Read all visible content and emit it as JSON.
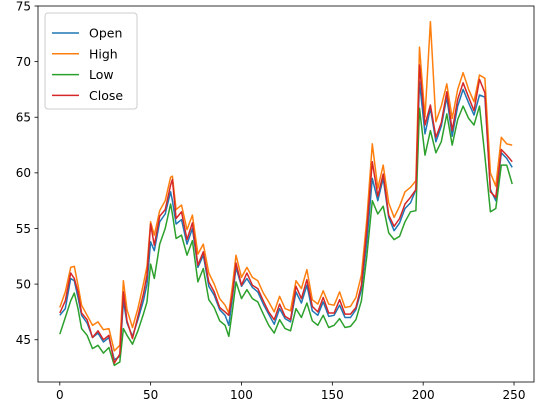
{
  "chart_data": {
    "type": "line",
    "title": "",
    "xlabel": "",
    "ylabel": "",
    "xlim": [
      -12,
      261
    ],
    "ylim": [
      41.2,
      75
    ],
    "grid": false,
    "legend_position": "top-left",
    "x_ticks": [
      0,
      50,
      100,
      150,
      200,
      250
    ],
    "y_ticks": [
      45,
      50,
      55,
      60,
      65,
      70,
      75
    ],
    "x": [
      0,
      3,
      6,
      8,
      10,
      12,
      15,
      18,
      21,
      24,
      27,
      30,
      33,
      35,
      37,
      40,
      43,
      46,
      48,
      50,
      52,
      55,
      58,
      61,
      62,
      64,
      67,
      70,
      73,
      76,
      79,
      82,
      85,
      88,
      91,
      93,
      95,
      97,
      100,
      103,
      106,
      109,
      112,
      115,
      118,
      121,
      124,
      127,
      130,
      133,
      136,
      139,
      142,
      145,
      148,
      151,
      154,
      157,
      160,
      163,
      166,
      169,
      172,
      175,
      178,
      181,
      184,
      187,
      190,
      193,
      196,
      198,
      201,
      204,
      207,
      210,
      213,
      216,
      219,
      222,
      225,
      228,
      231,
      234,
      237,
      240,
      243,
      246,
      249
    ],
    "series": [
      {
        "name": "Open",
        "color": "#1f77b4",
        "values": [
          47.2,
          47.8,
          50.5,
          50.3,
          48.8,
          47.2,
          46.5,
          45.2,
          45.6,
          44.8,
          45.2,
          43.2,
          43.5,
          48.5,
          46.5,
          45.3,
          46.8,
          48.5,
          50.0,
          53.8,
          53.0,
          55.6,
          56.3,
          58.3,
          57.5,
          55.4,
          55.8,
          53.6,
          55.0,
          51.5,
          52.6,
          49.8,
          49.0,
          47.7,
          47.2,
          46.3,
          48.8,
          51.5,
          49.8,
          50.5,
          49.7,
          49.3,
          48.2,
          47.3,
          46.4,
          47.8,
          46.9,
          46.6,
          49.3,
          48.3,
          49.9,
          47.6,
          47.2,
          48.4,
          47.1,
          47.2,
          48.1,
          47.0,
          47.0,
          47.7,
          49.5,
          53.8,
          59.5,
          57.5,
          59.5,
          56.0,
          54.8,
          55.5,
          56.8,
          57.3,
          58.5,
          68.2,
          63.5,
          65.8,
          62.8,
          64.2,
          66.8,
          63.3,
          66.0,
          67.5,
          66.3,
          65.2,
          67.0,
          66.8,
          58.5,
          57.5,
          61.8,
          61.3,
          60.5
        ]
      },
      {
        "name": "High",
        "color": "#ff7f0e",
        "values": [
          47.9,
          49.3,
          51.5,
          51.6,
          49.9,
          48.1,
          47.2,
          46.3,
          46.6,
          45.9,
          46.0,
          44.0,
          44.5,
          50.3,
          47.7,
          46.1,
          47.8,
          50.0,
          51.6,
          55.6,
          54.4,
          56.6,
          57.5,
          59.6,
          59.7,
          56.7,
          57.1,
          54.9,
          56.2,
          52.7,
          53.6,
          51.0,
          50.0,
          48.7,
          48.1,
          47.4,
          49.8,
          52.6,
          50.6,
          51.5,
          50.6,
          50.3,
          49.2,
          48.4,
          47.5,
          48.9,
          47.8,
          47.6,
          50.3,
          49.6,
          51.3,
          48.6,
          48.2,
          49.4,
          48.2,
          48.1,
          49.3,
          47.9,
          48.0,
          48.8,
          50.8,
          55.8,
          62.6,
          58.6,
          60.7,
          57.3,
          56.0,
          57.0,
          58.3,
          58.7,
          59.3,
          71.3,
          65.0,
          73.6,
          64.6,
          66.0,
          68.0,
          64.9,
          67.5,
          69.0,
          67.5,
          66.4,
          68.8,
          68.5,
          60.0,
          58.8,
          63.2,
          62.6,
          62.5
        ]
      },
      {
        "name": "Low",
        "color": "#2ca02c",
        "values": [
          45.5,
          47.0,
          48.5,
          49.2,
          47.8,
          46.0,
          45.4,
          44.2,
          44.5,
          43.8,
          44.3,
          42.7,
          43.0,
          46.0,
          45.4,
          44.6,
          45.8,
          47.3,
          48.4,
          51.8,
          50.5,
          53.6,
          55.0,
          57.2,
          56.3,
          54.1,
          54.4,
          52.6,
          53.9,
          50.2,
          51.4,
          48.6,
          47.9,
          46.7,
          46.3,
          45.3,
          47.6,
          50.2,
          48.7,
          49.5,
          48.7,
          48.4,
          47.3,
          46.3,
          45.6,
          46.8,
          46.0,
          45.8,
          47.8,
          47.0,
          48.3,
          46.7,
          46.3,
          47.2,
          46.1,
          46.3,
          46.9,
          46.1,
          46.2,
          46.8,
          48.5,
          52.5,
          57.5,
          56.3,
          57.0,
          54.6,
          54.0,
          54.3,
          55.6,
          56.5,
          56.6,
          65.8,
          61.6,
          63.8,
          61.8,
          62.8,
          65.3,
          62.5,
          64.8,
          66.0,
          64.9,
          64.3,
          66.0,
          61.5,
          56.5,
          56.8,
          60.7,
          60.7,
          59.0
        ]
      },
      {
        "name": "Close",
        "color": "#d62728",
        "values": [
          47.4,
          48.5,
          51.0,
          50.5,
          49.3,
          47.4,
          46.8,
          45.2,
          45.8,
          45.0,
          45.4,
          42.9,
          43.7,
          49.3,
          46.7,
          45.1,
          47.1,
          49.1,
          50.8,
          55.4,
          53.5,
          56.1,
          56.7,
          58.9,
          59.4,
          55.9,
          56.5,
          54.0,
          55.5,
          51.7,
          52.9,
          50.2,
          49.3,
          47.9,
          47.5,
          47.2,
          49.1,
          51.9,
          49.9,
          51.0,
          49.9,
          49.6,
          48.5,
          47.5,
          46.8,
          48.2,
          47.1,
          46.8,
          49.8,
          48.7,
          50.4,
          48.0,
          47.5,
          48.8,
          47.4,
          47.4,
          48.6,
          47.3,
          47.3,
          47.9,
          49.9,
          54.9,
          61.0,
          57.9,
          59.9,
          56.2,
          55.2,
          55.9,
          57.2,
          57.8,
          58.5,
          69.7,
          64.3,
          66.1,
          63.2,
          64.5,
          67.3,
          63.8,
          66.6,
          68.1,
          66.8,
          65.6,
          68.4,
          67.2,
          58.3,
          57.8,
          62.1,
          61.6,
          61.0
        ]
      }
    ]
  }
}
